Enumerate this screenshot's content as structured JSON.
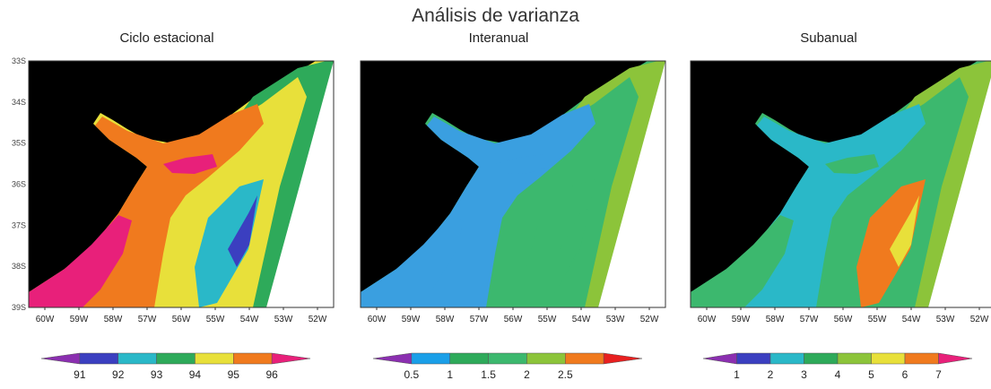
{
  "title": "Análisis de varianza",
  "chart_data": [
    {
      "type": "heatmap",
      "title": "Ciclo estacional",
      "xticks": [
        "60W",
        "59W",
        "58W",
        "57W",
        "56W",
        "55W",
        "54W",
        "53W",
        "52W"
      ],
      "yticks": [
        "33S",
        "34S",
        "35S",
        "36S",
        "37S",
        "38S",
        "39S"
      ],
      "colorbar": {
        "labels": [
          "91",
          "92",
          "93",
          "94",
          "95",
          "96"
        ],
        "colors": [
          "#8b2fb0",
          "#3b3fc0",
          "#2ab8c8",
          "#2eaa5a",
          "#e8e03a",
          "#f07a1e",
          "#e8207a"
        ]
      },
      "region_colors": {
        "inner": "#e8207a",
        "middle": "#f07a1e",
        "coast_south": "#2ab8c8",
        "coast_low": "#3b3fc0",
        "shelf": "#e8e03a",
        "outer": "#2eaa5a"
      }
    },
    {
      "type": "heatmap",
      "title": "Interanual",
      "xticks": [
        "60W",
        "59W",
        "58W",
        "57W",
        "56W",
        "55W",
        "54W",
        "53W",
        "52W"
      ],
      "colorbar": {
        "labels": [
          "0.5",
          "1",
          "1.5",
          "2",
          "2.5"
        ],
        "colors": [
          "#8b2fb0",
          "#1a9fe8",
          "#2eaa5a",
          "#3cb86e",
          "#8cc43a",
          "#f07a1e",
          "#e82020"
        ]
      },
      "region_colors": {
        "inner": "#3a9fe0",
        "middle": "#3a9fe0",
        "coast_south": "#3cb86e",
        "coast_low": "#3cb86e",
        "shelf": "#3cb86e",
        "outer": "#8cc43a"
      }
    },
    {
      "type": "heatmap",
      "title": "Subanual",
      "xticks": [
        "60W",
        "59W",
        "58W",
        "57W",
        "56W",
        "55W",
        "54W",
        "53W",
        "52W"
      ],
      "colorbar": {
        "labels": [
          "1",
          "2",
          "3",
          "4",
          "5",
          "6",
          "7"
        ],
        "colors": [
          "#8b2fb0",
          "#3b3fc0",
          "#2ab8c8",
          "#2eaa5a",
          "#8cc43a",
          "#e8e03a",
          "#f07a1e",
          "#e8207a"
        ]
      },
      "region_colors": {
        "inner": "#3cb86e",
        "middle": "#2ab8c8",
        "coast_south": "#f07a1e",
        "coast_low": "#e8e03a",
        "shelf": "#3cb86e",
        "outer": "#8cc43a"
      }
    }
  ]
}
